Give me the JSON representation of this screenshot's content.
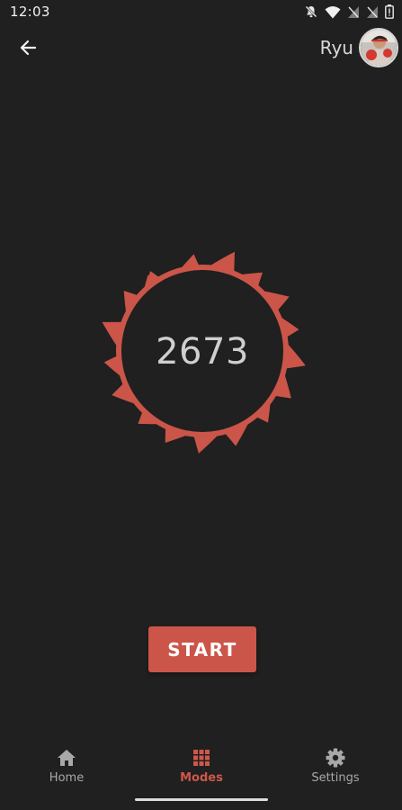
{
  "status_bar": {
    "time": "12:03",
    "icons": [
      "notifications-off-icon",
      "wifi-icon",
      "signal-off-icon",
      "signal-off-icon",
      "battery-icon"
    ]
  },
  "header": {
    "back_icon": "arrow-left-icon",
    "user_name": "Ryu",
    "avatar_icon": "user-avatar"
  },
  "counter": {
    "value": "2673",
    "ring_color": "#cb5549"
  },
  "start_button": {
    "label": "START",
    "color": "#cb5549"
  },
  "bottom_nav": {
    "items": [
      {
        "label": "Home",
        "icon": "home-icon",
        "active": false
      },
      {
        "label": "Modes",
        "icon": "grid-icon",
        "active": true
      },
      {
        "label": "Settings",
        "icon": "gear-icon",
        "active": false
      }
    ],
    "active_color": "#cf574a",
    "inactive_color": "#a8a8a8"
  }
}
